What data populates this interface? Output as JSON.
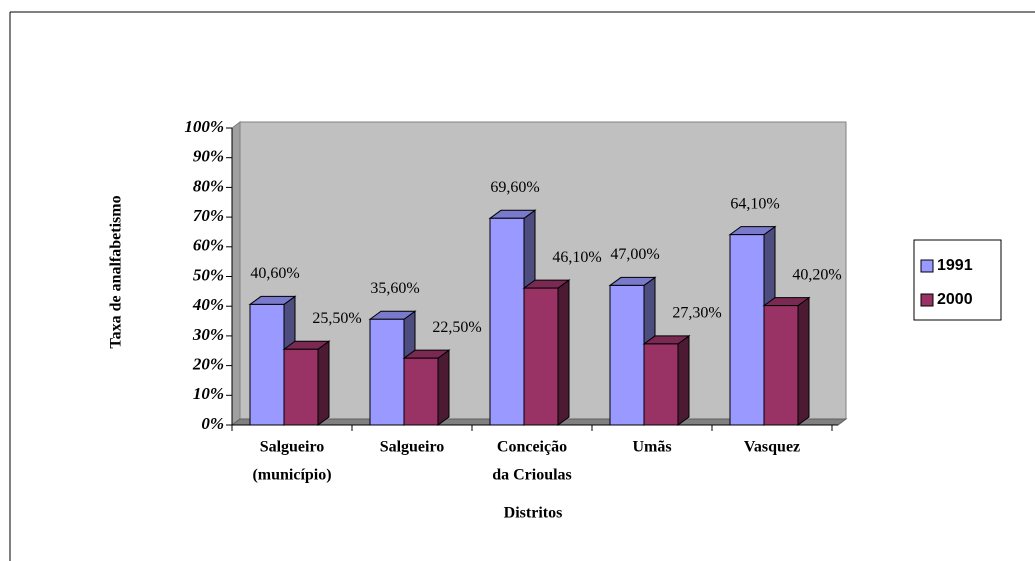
{
  "chart_data": {
    "type": "bar3d",
    "xlabel": "Distritos",
    "ylabel": "Taxa de analfabetismo",
    "categories": [
      [
        "Salgueiro",
        "(município)"
      ],
      [
        "Salgueiro"
      ],
      [
        "Conceição",
        "da Crioulas"
      ],
      [
        "Umãs"
      ],
      [
        "Vasquez"
      ]
    ],
    "series": [
      {
        "name": "1991",
        "color": "#9999ff",
        "values": [
          40.6,
          35.6,
          69.6,
          47.0,
          64.1
        ],
        "value_labels": [
          "40,60%",
          "35,60%",
          "69,60%",
          "47,00%",
          "64,10%"
        ]
      },
      {
        "name": "2000",
        "color": "#993366",
        "values": [
          25.5,
          22.5,
          46.1,
          27.3,
          40.2
        ],
        "value_labels": [
          "25,50%",
          "22,50%",
          "46,10%",
          "27,30%",
          "40,20%"
        ]
      }
    ],
    "ylim": [
      0,
      100
    ],
    "yticks": [
      {
        "value": 0,
        "label": "0%"
      },
      {
        "value": 10,
        "label": "10%"
      },
      {
        "value": 20,
        "label": "20%"
      },
      {
        "value": 30,
        "label": "30%"
      },
      {
        "value": 40,
        "label": "40%"
      },
      {
        "value": 50,
        "label": "50%"
      },
      {
        "value": 60,
        "label": "60%"
      },
      {
        "value": 70,
        "label": "70%"
      },
      {
        "value": 80,
        "label": "80%"
      },
      {
        "value": 90,
        "label": "90%"
      },
      {
        "value": 100,
        "label": "100%"
      }
    ],
    "legend": "right"
  }
}
